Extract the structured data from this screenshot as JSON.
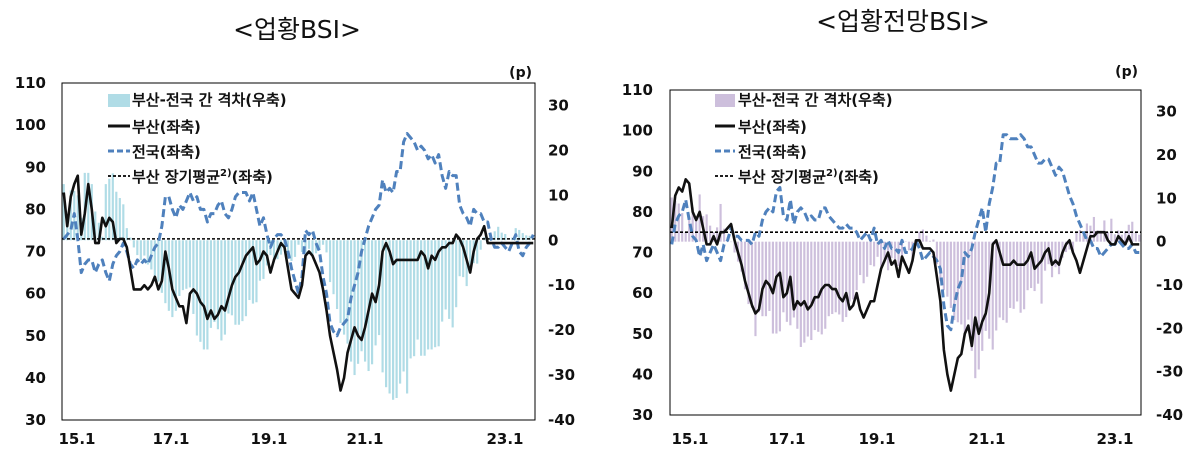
{
  "chart_data": [
    {
      "type": "line",
      "title": "<업황BSI>",
      "unit_right": "(p)",
      "x_ticks": [
        "15.1",
        "17.1",
        "19.1",
        "21.1",
        "23.1"
      ],
      "x_range": [
        "2015-01",
        "2023-09"
      ],
      "y_left": {
        "min": 30,
        "max": 110,
        "ticks": [
          30,
          40,
          50,
          60,
          70,
          80,
          90,
          100,
          110
        ]
      },
      "y_right": {
        "min": -40,
        "max": 35,
        "ticks": [
          -40,
          -30,
          -20,
          -10,
          0,
          10,
          20,
          30
        ]
      },
      "legend": [
        "부산-전국 간 격차(우축)",
        "부산(좌축)",
        "전국(좌축)",
        "부산 장기평균(좌축)"
      ],
      "legend_sup": "2)",
      "colors": {
        "gap": "#b0dce6",
        "busan": "#111111",
        "national": "#4f81bd",
        "avg": "#000000"
      },
      "avg_value": 73,
      "series": [
        {
          "name": "부산-전국 간 격차(우축)",
          "axis": "right",
          "values": [
            12.5,
            5.0,
            11.1,
            11.0,
            10.0,
            5.0,
            15.0,
            15.0,
            12.5,
            6.4,
            3.9,
            0.8,
            12.5,
            13.7,
            14.9,
            10.8,
            9.4,
            8.0,
            2.7,
            0.6,
            -1.6,
            -3.3,
            -4.4,
            -3.4,
            -5.4,
            -6.5,
            -7.9,
            -9.2,
            -11.7,
            -14.0,
            -15.7,
            -17.1,
            -15.7,
            -12.4,
            -11.1,
            -10.8,
            -10.5,
            -16.4,
            -21.2,
            -22.6,
            -24.3,
            -24.3,
            -19.5,
            -18.2,
            -19.8,
            -22.3,
            -21.0,
            -16.3,
            -16.7,
            -18.8,
            -18.8,
            -18.0,
            -16.9,
            -13.3,
            -14.1,
            -13.8,
            -9.0,
            -8.6,
            -5.6,
            -3.3,
            -4.9,
            -4.2,
            -3.2,
            -2.0,
            -3.4,
            -4.6,
            -3.7,
            -1.0,
            -2.6,
            -2.8,
            -1.9,
            -3.2,
            -2.9,
            -2.1,
            -1.0,
            -2.7,
            -9.3,
            -12.0,
            -15.3,
            -18.4,
            -21.0,
            -23.0,
            -27.0,
            -30.0,
            -27.5,
            -24.7,
            -27.0,
            -29.1,
            -27.6,
            -23.4,
            -21.1,
            -29.4,
            -32.7,
            -34.1,
            -35.5,
            -35.1,
            -31.9,
            -29.2,
            -34.1,
            -26.3,
            -25.8,
            -22.1,
            -25.7,
            -25.7,
            -24.3,
            -24.3,
            -23.8,
            -23.6,
            -18.1,
            -15.4,
            -17.5,
            -19.4,
            -14.9,
            -8.0,
            -8.2,
            -10.2,
            -6.5,
            -5.1,
            -5.2,
            -2.1,
            0.7,
            0.6,
            -0.1,
            2.0,
            3.0,
            1.7,
            1.4,
            0.0,
            0.6,
            2.7,
            2.3,
            1.6,
            1.1,
            1.0,
            0.0
          ]
        },
        {
          "name": "부산(좌축)",
          "axis": "left",
          "values": [
            84,
            76,
            83,
            86,
            88,
            74,
            79,
            86,
            80,
            72,
            72,
            78,
            76,
            78,
            77,
            72,
            73,
            73,
            71,
            66,
            61,
            61,
            61,
            62,
            61,
            62,
            64,
            61,
            63,
            70,
            66,
            61,
            59,
            57,
            57,
            53,
            60,
            61,
            60,
            58,
            57,
            54,
            56,
            54,
            55,
            57,
            56,
            59,
            62,
            64,
            65,
            67,
            69,
            70,
            71,
            67,
            68,
            70,
            69,
            65,
            68,
            70,
            72,
            71,
            66,
            61,
            60,
            59,
            62,
            69,
            70,
            69,
            67,
            65,
            61,
            56,
            50,
            46,
            42,
            37,
            40,
            46,
            49,
            52,
            50,
            49,
            52,
            56,
            60,
            58,
            62,
            70,
            72,
            70,
            67,
            68,
            68,
            68,
            68,
            68,
            68,
            68,
            70,
            69,
            66,
            69,
            68,
            70,
            71,
            71,
            72,
            72,
            74,
            73,
            71,
            68,
            65,
            70,
            73,
            74,
            76,
            72,
            72,
            72,
            72,
            72,
            72,
            72,
            72,
            72,
            72,
            72,
            72,
            72,
            72
          ]
        },
        {
          "name": "전국(좌축)",
          "axis": "left",
          "values": [
            73,
            74,
            75,
            79,
            73,
            65,
            67,
            68,
            68,
            65,
            67,
            68,
            65,
            63,
            67,
            69,
            70,
            72,
            70,
            67,
            66,
            68,
            67,
            68,
            67,
            69,
            71,
            72,
            76,
            83,
            83,
            80,
            78,
            81,
            80,
            82,
            84,
            82,
            83,
            80,
            80,
            77,
            79,
            79,
            81,
            82,
            79,
            78,
            80,
            83,
            84,
            84,
            84,
            82,
            84,
            80,
            76,
            78,
            74,
            71,
            73,
            74,
            74,
            73,
            70,
            66,
            63,
            60,
            64,
            75,
            74,
            75,
            72,
            70,
            64,
            60,
            53,
            51,
            50,
            52,
            53,
            54,
            59,
            62,
            65,
            70,
            73,
            76,
            78,
            80,
            81,
            87,
            84,
            85,
            84,
            89,
            89,
            96,
            98,
            97,
            96,
            94,
            95,
            94,
            92,
            93,
            91,
            93,
            88,
            85,
            89,
            88,
            88,
            81,
            79,
            78,
            76,
            80,
            79,
            79,
            77,
            77,
            73,
            71,
            71,
            72,
            71,
            70,
            72,
            74,
            70,
            69,
            71,
            72,
            74
          ]
        }
      ]
    },
    {
      "type": "line",
      "title": "<업황전망BSI>",
      "unit_right": "(p)",
      "x_ticks": [
        "15.1",
        "17.1",
        "19.1",
        "21.1",
        "23.1"
      ],
      "x_range": [
        "2015-01",
        "2023-09"
      ],
      "y_left": {
        "min": 30,
        "max": 110,
        "ticks": [
          30,
          40,
          50,
          60,
          70,
          80,
          90,
          100,
          110
        ]
      },
      "y_right": {
        "min": -40,
        "max": 35,
        "ticks": [
          -40,
          -30,
          -20,
          -10,
          0,
          10,
          20,
          30
        ]
      },
      "legend": [
        "부산-전국 간 격차(우축)",
        "부산(좌축)",
        "전국(좌축)",
        "부산 장기평균(좌축)"
      ],
      "legend_sup": "2)",
      "colors": {
        "gap": "#cdbfdc",
        "busan": "#111111",
        "national": "#4f81bd",
        "avg": "#000000"
      },
      "avg_value": 75,
      "series": [
        {
          "name": "부산-전국 간 격차(우축)",
          "axis": "right",
          "values": [
            10.2,
            9.4,
            8.8,
            6.6,
            2.2,
            5.8,
            7.9,
            5.8,
            10.9,
            5.9,
            6.3,
            3.7,
            2.2,
            3.3,
            8.7,
            3.0,
            1.0,
            -0.1,
            -2.5,
            -4.6,
            -6.9,
            -11.0,
            -14.4,
            -15.3,
            -21.8,
            -16.3,
            -17.2,
            -17.2,
            -16.0,
            -21.2,
            -21.2,
            -20.7,
            -16.3,
            -18.5,
            -19.3,
            -17.5,
            -20.1,
            -24.3,
            -23.3,
            -21.9,
            -22.7,
            -20.4,
            -20.8,
            -21.4,
            -20.1,
            -17.2,
            -16.7,
            -16.3,
            -16.8,
            -18.5,
            -17.4,
            -13.8,
            -13.3,
            -11.2,
            -7.7,
            -9.6,
            -8.1,
            -5.4,
            -5.7,
            -3.5,
            -5.9,
            -4.8,
            -6.6,
            -3.8,
            -5.4,
            -5.6,
            -4.5,
            0.1,
            -2.0,
            -4.5,
            -0.5,
            2.3,
            2.8,
            1.4,
            0.2,
            0.5,
            -5.2,
            -9.0,
            -11.2,
            -12.7,
            -15.3,
            -18.1,
            -18.6,
            -19.1,
            -21.6,
            -18.0,
            -25.2,
            -31.5,
            -29.5,
            -25.2,
            -20.6,
            -22.4,
            -24.9,
            -20.5,
            -17.5,
            -18.1,
            -18.7,
            -15.3,
            -15.5,
            -13.8,
            -16.4,
            -15.6,
            -11.2,
            -10.7,
            -11.4,
            -9.7,
            -14.3,
            -6.7,
            -5.2,
            -8.2,
            -5.9,
            -7.5,
            -3.7,
            -2.4,
            -1.8,
            -2.5,
            2.0,
            2.7,
            1.6,
            4.2,
            3.7,
            5.7,
            2.6,
            2.5,
            4.9,
            2.2,
            5.3,
            1.7,
            2.6,
            1.6,
            2.4,
            3.9,
            4.6,
            2.1,
            1.6
          ]
        },
        {
          "name": "부산(좌축)",
          "axis": "left",
          "values": [
            76,
            84,
            86,
            85,
            88,
            87,
            80,
            78,
            80,
            76,
            72,
            72,
            74,
            72,
            75,
            75,
            76,
            77,
            73,
            70,
            67,
            63,
            60,
            57,
            55,
            56,
            61,
            63,
            62,
            60,
            64,
            65,
            59,
            60,
            64,
            56,
            58,
            57,
            58,
            56,
            57,
            59,
            59,
            61,
            62,
            62,
            61,
            61,
            59,
            58,
            60,
            56,
            57,
            60,
            56,
            54,
            56,
            58,
            58,
            62,
            66,
            68,
            70,
            67,
            68,
            64,
            69,
            67,
            65,
            68,
            73,
            73,
            71,
            71,
            71,
            70,
            64,
            58,
            46,
            40,
            36,
            40,
            44,
            45,
            50,
            52,
            47,
            54,
            50,
            53,
            55,
            60,
            72,
            73,
            70,
            67,
            67,
            67,
            68,
            67,
            67,
            67,
            68,
            70,
            66,
            67,
            68,
            70,
            71,
            67,
            68,
            67,
            70,
            72,
            73,
            70,
            68,
            65,
            68,
            71,
            74,
            74,
            75,
            75,
            75,
            73,
            72,
            72,
            74,
            73,
            72,
            74,
            72,
            72,
            72
          ]
        },
        {
          "name": "전국(좌축)",
          "axis": "left",
          "values": [
            72,
            77,
            79,
            80,
            83,
            78,
            74,
            73,
            69,
            72,
            68,
            70,
            72,
            70,
            68,
            72,
            73,
            76,
            74,
            74,
            73,
            73,
            73,
            72,
            75,
            74,
            78,
            80,
            81,
            80,
            85,
            86,
            79,
            78,
            83,
            77,
            80,
            81,
            80,
            78,
            79,
            78,
            78,
            81,
            81,
            79,
            78,
            77,
            76,
            76,
            77,
            76,
            76,
            75,
            73,
            74,
            75,
            73,
            76,
            72,
            73,
            71,
            73,
            71,
            71,
            70,
            73,
            70,
            70,
            71,
            73,
            71,
            68,
            69,
            70,
            69,
            68,
            66,
            57,
            52,
            51,
            57,
            61,
            63,
            70,
            69,
            71,
            75,
            78,
            81,
            75,
            82,
            86,
            92,
            92,
            99,
            99,
            98,
            98,
            98,
            99,
            98,
            96,
            96,
            94,
            92,
            92,
            93,
            93,
            91,
            89,
            91,
            90,
            87,
            84,
            82,
            79,
            77,
            75,
            73,
            73,
            71,
            71,
            69,
            70,
            71,
            72,
            72,
            73,
            72,
            71,
            71,
            72,
            70,
            70
          ]
        }
      ]
    }
  ]
}
